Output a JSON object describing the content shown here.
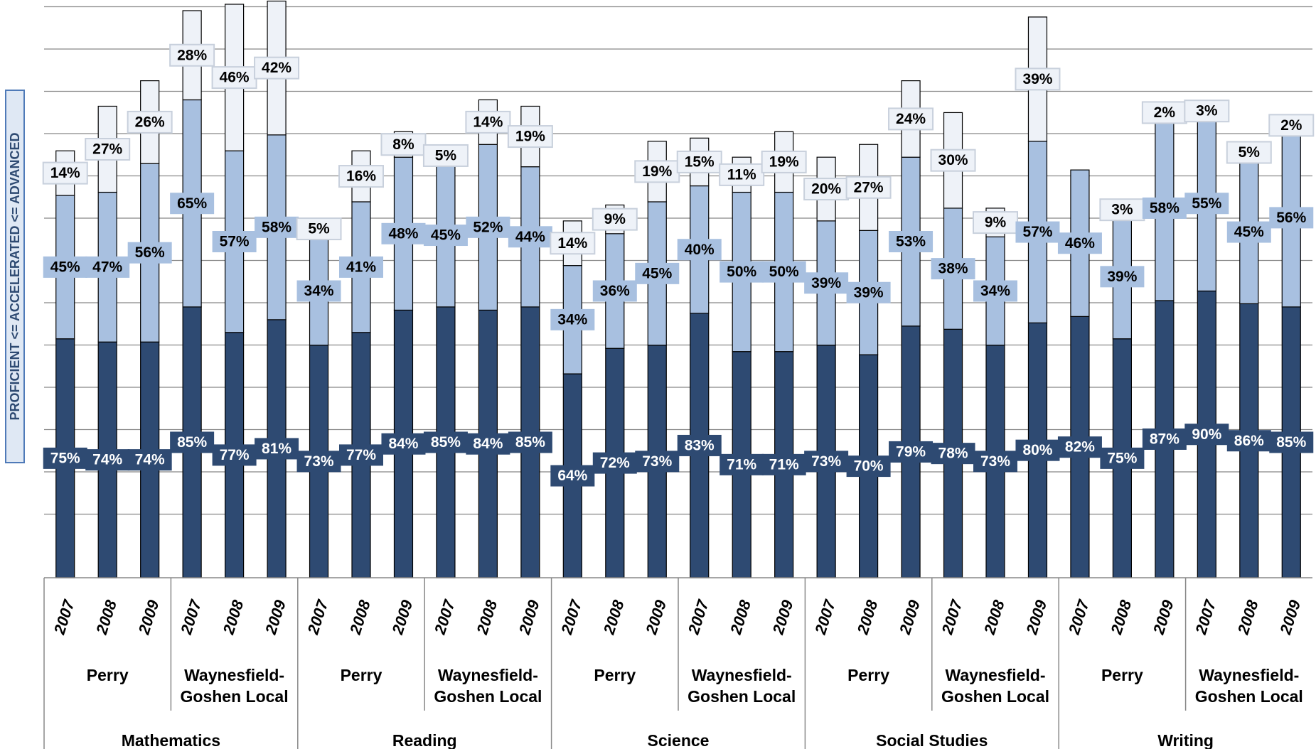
{
  "chart_data": {
    "type": "stacked_bar",
    "y_label": "PROFICIENT <= ACCELERATED <= ADVANCED",
    "categories": [
      "2007",
      "2008",
      "2009",
      "2007",
      "2008",
      "2009",
      "2007",
      "2008",
      "2009",
      "2007",
      "2008",
      "2009",
      "2007",
      "2008",
      "2009",
      "2007",
      "2008",
      "2009",
      "2007",
      "2008",
      "2009",
      "2007",
      "2008",
      "2009",
      "2007",
      "2008",
      "2009",
      "2007",
      "2008",
      "2009"
    ],
    "groups": [
      "Perry",
      "Waynesfield-Goshen Local",
      "Perry",
      "Waynesfield-Goshen Local",
      "Perry",
      "Waynesfield-Goshen Local",
      "Perry",
      "Waynesfield-Goshen Local",
      "Perry",
      "Waynesfield-Goshen Local"
    ],
    "subjects": [
      "Mathematics",
      "Reading",
      "Science",
      "Social Studies",
      "Writing"
    ],
    "series": [
      {
        "color": "#2e4a72",
        "label_text_color": "#ffffff",
        "values": [
          75,
          74,
          74,
          85,
          77,
          81,
          73,
          77,
          84,
          85,
          84,
          85,
          64,
          72,
          73,
          83,
          71,
          71,
          73,
          70,
          79,
          78,
          73,
          80,
          82,
          75,
          87,
          90,
          86,
          85
        ],
        "value_labels": [
          "75%",
          "74%",
          "74%",
          "85%",
          "77%",
          "81%",
          "73%",
          "77%",
          "84%",
          "85%",
          "84%",
          "85%",
          "64%",
          "72%",
          "73%",
          "83%",
          "71%",
          "71%",
          "73%",
          "70%",
          "79%",
          "78%",
          "73%",
          "80%",
          "82%",
          "75%",
          "87%",
          "90%",
          "86%",
          "85%"
        ]
      },
      {
        "color": "#a8c0e0",
        "label_text_color": "#000000",
        "values": [
          45,
          47,
          56,
          65,
          57,
          58,
          34,
          41,
          48,
          45,
          52,
          44,
          34,
          36,
          45,
          40,
          50,
          50,
          39,
          39,
          53,
          38,
          34,
          57,
          46,
          39,
          58,
          55,
          45,
          56
        ],
        "value_labels": [
          "45%",
          "47%",
          "56%",
          "65%",
          "57%",
          "58%",
          "34%",
          "41%",
          "48%",
          "45%",
          "52%",
          "44%",
          "34%",
          "36%",
          "45%",
          "40%",
          "50%",
          "50%",
          "39%",
          "39%",
          "53%",
          "38%",
          "34%",
          "57%",
          "46%",
          "39%",
          "58%",
          "55%",
          "45%",
          "56%"
        ]
      },
      {
        "color": "#eef2f8",
        "label_text_color": "#000000",
        "values": [
          14,
          27,
          26,
          28,
          46,
          42,
          5,
          16,
          8,
          5,
          14,
          19,
          14,
          9,
          19,
          15,
          11,
          19,
          20,
          27,
          24,
          30,
          9,
          39,
          null,
          3,
          2,
          3,
          5,
          2
        ],
        "value_labels": [
          "14%",
          "27%",
          "26%",
          "28%",
          "46%",
          "42%",
          "5%",
          "16%",
          "8%",
          "5%",
          "14%",
          "19%",
          "14%",
          "9%",
          "19%",
          "15%",
          "11%",
          "19%",
          "20%",
          "27%",
          "24%",
          "30%",
          "9%",
          "39%",
          null,
          "3%",
          "2%",
          "3%",
          "5%",
          "2%"
        ]
      }
    ],
    "ylim": [
      0,
      180
    ],
    "grid": true
  }
}
